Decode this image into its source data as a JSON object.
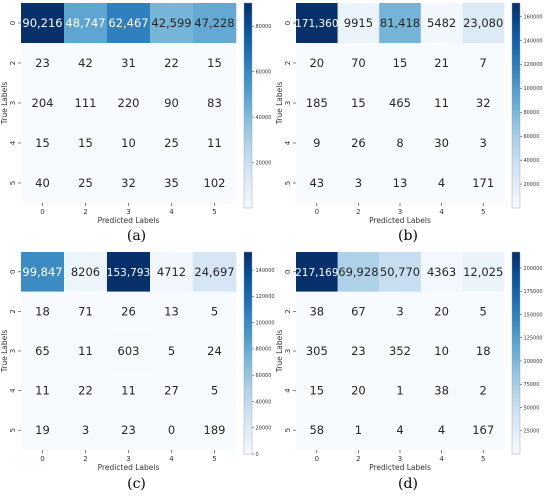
{
  "chart_data": [
    {
      "type": "heatmap",
      "caption": "(a)",
      "xlabel": "Predicted Labels",
      "ylabel": "True Labels",
      "x_tick_labels": [
        "0",
        "2",
        "3",
        "4",
        "5"
      ],
      "y_tick_labels": [
        "0",
        "2",
        "3",
        "4",
        "5"
      ],
      "matrix": [
        [
          90216,
          48747,
          62467,
          42599,
          47228
        ],
        [
          23,
          42,
          31,
          22,
          15
        ],
        [
          204,
          111,
          220,
          90,
          83
        ],
        [
          15,
          15,
          10,
          25,
          11
        ],
        [
          40,
          25,
          32,
          35,
          102
        ]
      ],
      "labels": [
        [
          "90,216",
          "48,747",
          "62,467",
          "42,599",
          "47,228"
        ],
        [
          "23",
          "42",
          "31",
          "22",
          "15"
        ],
        [
          "204",
          "111",
          "220",
          "90",
          "83"
        ],
        [
          "15",
          "15",
          "10",
          "25",
          "11"
        ],
        [
          "40",
          "25",
          "32",
          "35",
          "102"
        ]
      ],
      "colorbar": {
        "vmin": 0,
        "vmax": 90216,
        "ticks": [
          20000,
          40000,
          60000,
          80000
        ],
        "tick_labels": [
          "20000",
          "40000",
          "60000",
          "80000"
        ]
      },
      "colormap": "Blues"
    },
    {
      "type": "heatmap",
      "caption": "(b)",
      "xlabel": "Predicted Labels",
      "ylabel": "True Labels",
      "x_tick_labels": [
        "0",
        "2",
        "3",
        "4",
        "5"
      ],
      "y_tick_labels": [
        "0",
        "2",
        "3",
        "4",
        "5"
      ],
      "matrix": [
        [
          171360,
          9915,
          81418,
          5482,
          23080
        ],
        [
          20,
          70,
          15,
          21,
          7
        ],
        [
          185,
          15,
          465,
          11,
          32
        ],
        [
          9,
          26,
          8,
          30,
          3
        ],
        [
          43,
          3,
          13,
          4,
          171
        ]
      ],
      "labels": [
        [
          "171,360",
          "9915",
          "81,418",
          "5482",
          "23,080"
        ],
        [
          "20",
          "70",
          "15",
          "21",
          "7"
        ],
        [
          "185",
          "15",
          "465",
          "11",
          "32"
        ],
        [
          "9",
          "26",
          "8",
          "30",
          "3"
        ],
        [
          "43",
          "3",
          "13",
          "4",
          "171"
        ]
      ],
      "colorbar": {
        "vmin": 0,
        "vmax": 171360,
        "ticks": [
          20000,
          40000,
          60000,
          80000,
          100000,
          120000,
          140000,
          160000
        ],
        "tick_labels": [
          "20000",
          "40000",
          "60000",
          "80000",
          "100000",
          "120000",
          "140000",
          "160000"
        ]
      },
      "colormap": "Blues"
    },
    {
      "type": "heatmap",
      "caption": "(c)",
      "xlabel": "Predicted Labels",
      "ylabel": "True Labels",
      "x_tick_labels": [
        "0",
        "2",
        "3",
        "4",
        "5"
      ],
      "y_tick_labels": [
        "0",
        "2",
        "3",
        "4",
        "5"
      ],
      "matrix": [
        [
          99847,
          8206,
          153793,
          4712,
          24697
        ],
        [
          18,
          71,
          26,
          13,
          5
        ],
        [
          65,
          11,
          603,
          5,
          24
        ],
        [
          11,
          22,
          11,
          27,
          5
        ],
        [
          19,
          3,
          23,
          0,
          189
        ]
      ],
      "labels": [
        [
          "99,847",
          "8206",
          "153,793",
          "4712",
          "24,697"
        ],
        [
          "18",
          "71",
          "26",
          "13",
          "5"
        ],
        [
          "65",
          "11",
          "603",
          "5",
          "24"
        ],
        [
          "11",
          "22",
          "11",
          "27",
          "5"
        ],
        [
          "19",
          "3",
          "23",
          "0",
          "189"
        ]
      ],
      "colorbar": {
        "vmin": 0,
        "vmax": 153793,
        "ticks": [
          0,
          20000,
          40000,
          60000,
          80000,
          100000,
          120000,
          140000
        ],
        "tick_labels": [
          "0",
          "20000",
          "40000",
          "60000",
          "80000",
          "100000",
          "120000",
          "140000"
        ]
      },
      "colormap": "Blues"
    },
    {
      "type": "heatmap",
      "caption": "(d)",
      "xlabel": "Predicted Labels",
      "ylabel": "True Labels",
      "x_tick_labels": [
        "0",
        "2",
        "3",
        "4",
        "5"
      ],
      "y_tick_labels": [
        "0",
        "2",
        "3",
        "4",
        "5"
      ],
      "matrix": [
        [
          217169,
          69928,
          50770,
          4363,
          12025
        ],
        [
          38,
          67,
          3,
          20,
          5
        ],
        [
          305,
          23,
          352,
          10,
          18
        ],
        [
          15,
          20,
          1,
          38,
          2
        ],
        [
          58,
          1,
          4,
          4,
          167
        ]
      ],
      "labels": [
        [
          "217,169",
          "69,928",
          "50,770",
          "4363",
          "12,025"
        ],
        [
          "38",
          "67",
          "3",
          "20",
          "5"
        ],
        [
          "305",
          "23",
          "352",
          "10",
          "18"
        ],
        [
          "15",
          "20",
          "1",
          "38",
          "2"
        ],
        [
          "58",
          "1",
          "4",
          "4",
          "167"
        ]
      ],
      "colorbar": {
        "vmin": 0,
        "vmax": 217169,
        "ticks": [
          25000,
          50000,
          75000,
          100000,
          125000,
          150000,
          175000,
          200000
        ],
        "tick_labels": [
          "25000",
          "50000",
          "75000",
          "100000",
          "125000",
          "150000",
          "175000",
          "200000"
        ]
      },
      "colormap": "Blues"
    }
  ]
}
